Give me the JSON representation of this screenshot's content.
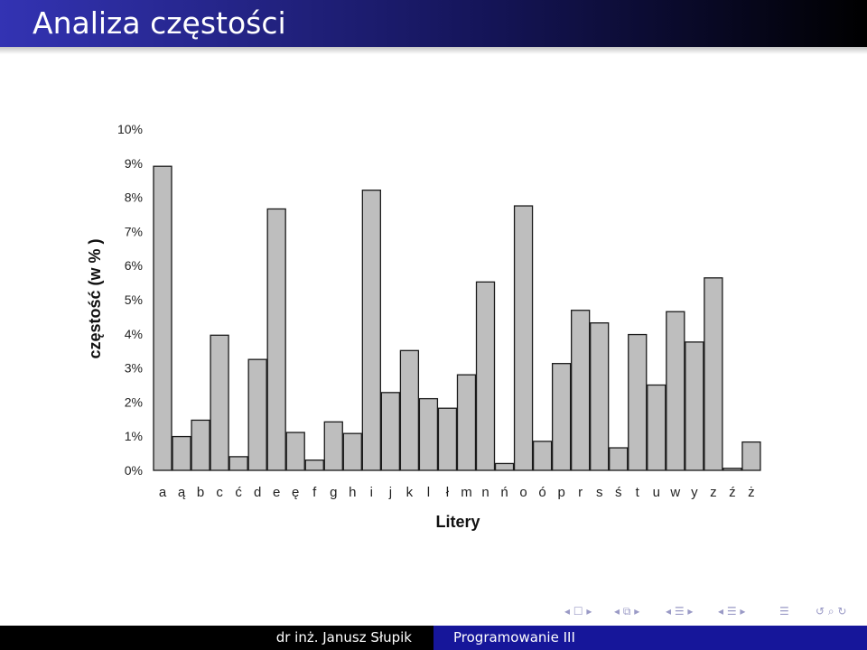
{
  "frame": {
    "title": "Analiza częstości"
  },
  "footer": {
    "author": "dr inż. Janusz Słupik",
    "course": "Programowanie III"
  },
  "chart_data": {
    "type": "bar",
    "categories": [
      "a",
      "ą",
      "b",
      "c",
      "ć",
      "d",
      "e",
      "ę",
      "f",
      "g",
      "h",
      "i",
      "j",
      "k",
      "l",
      "ł",
      "m",
      "n",
      "ń",
      "o",
      "ó",
      "p",
      "r",
      "s",
      "ś",
      "t",
      "u",
      "w",
      "y",
      "z",
      "ź",
      "ż"
    ],
    "values": [
      8.91,
      0.99,
      1.47,
      3.96,
      0.4,
      3.25,
      7.66,
      1.11,
      0.3,
      1.42,
      1.08,
      8.21,
      2.28,
      3.51,
      2.1,
      1.82,
      2.8,
      5.52,
      0.2,
      7.75,
      0.85,
      3.13,
      4.69,
      4.32,
      0.66,
      3.98,
      2.5,
      4.65,
      3.76,
      5.64,
      0.06,
      0.83
    ],
    "xlabel": "Litery",
    "ylabel": "częstość (w % )",
    "ylim": [
      0,
      10
    ],
    "yticks": [
      "0%",
      "1%",
      "2%",
      "3%",
      "4%",
      "5%",
      "6%",
      "7%",
      "8%",
      "9%",
      "10%"
    ],
    "grid": false,
    "colors": {
      "bar": "#bebebe",
      "edge": "#1a1a1a"
    }
  }
}
